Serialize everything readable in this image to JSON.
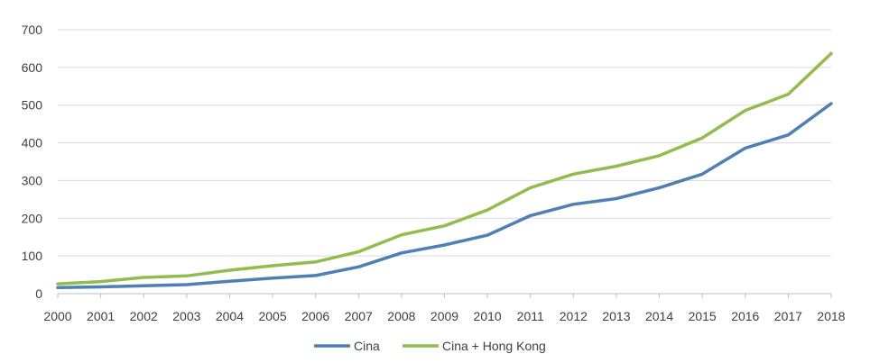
{
  "chart_data": {
    "type": "line",
    "title": "",
    "xlabel": "",
    "ylabel": "",
    "x": [
      "2000",
      "2001",
      "2002",
      "2003",
      "2004",
      "2005",
      "2006",
      "2007",
      "2008",
      "2009",
      "2010",
      "2011",
      "2012",
      "2013",
      "2014",
      "2015",
      "2016",
      "2017",
      "2018"
    ],
    "ylim": [
      0,
      700
    ],
    "yticks": [
      "0",
      "100",
      "200",
      "300",
      "400",
      "500",
      "600",
      "700"
    ],
    "grid": true,
    "legend_position": "bottom",
    "series": [
      {
        "name": "Cina",
        "color": "#4f7fb5",
        "values": [
          16,
          18,
          21,
          24,
          33,
          41,
          48,
          71,
          108,
          129,
          155,
          207,
          237,
          252,
          281,
          317,
          386,
          421,
          504
        ]
      },
      {
        "name": "Cina + Hong Kong",
        "color": "#92bc4d",
        "values": [
          26,
          32,
          43,
          47,
          62,
          74,
          84,
          111,
          156,
          180,
          222,
          281,
          317,
          338,
          366,
          413,
          486,
          529,
          637
        ]
      }
    ]
  }
}
